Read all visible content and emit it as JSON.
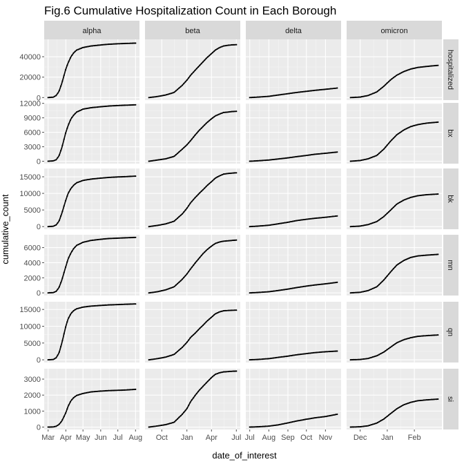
{
  "chart_data": {
    "type": "scatter",
    "title": "Fig.6 Cumulative Hospitalization Count in Each Borough",
    "xlabel": "date_of_interest",
    "ylabel": "cumulative_count",
    "grid": true,
    "facet_cols": [
      "alpha",
      "beta",
      "delta",
      "omicron"
    ],
    "facet_rows": [
      "hospitalized",
      "bx",
      "bk",
      "mn",
      "qn",
      "si"
    ],
    "x_ticks": {
      "alpha": [
        "Mar",
        "Apr",
        "May",
        "Jun",
        "Jul",
        "Aug"
      ],
      "beta": [
        "Oct",
        "Jan",
        "Apr",
        "Jul"
      ],
      "delta": [
        "Jul",
        "Aug",
        "Sep",
        "Oct",
        "Nov"
      ],
      "omicron": [
        "Dec",
        "Jan",
        "Feb"
      ]
    },
    "y_ticks": {
      "hospitalized": [
        0,
        20000,
        40000
      ],
      "bx": [
        0,
        3000,
        6000,
        9000,
        12000
      ],
      "bk": [
        0,
        5000,
        10000,
        15000
      ],
      "mn": [
        0,
        2000,
        4000,
        6000
      ],
      "qn": [
        0,
        5000,
        10000,
        15000
      ],
      "si": [
        0,
        1000,
        2000,
        3000
      ]
    },
    "y_ranges": {
      "hospitalized": [
        -2500,
        57000
      ],
      "bx": [
        -500,
        12100
      ],
      "bk": [
        -800,
        17500
      ],
      "mn": [
        -350,
        7700
      ],
      "qn": [
        -800,
        17300
      ],
      "si": [
        -150,
        3650
      ]
    },
    "series": {
      "alpha": {
        "x": [
          "2020-03-01",
          "2020-03-10",
          "2020-03-15",
          "2020-03-20",
          "2020-03-25",
          "2020-04-01",
          "2020-04-05",
          "2020-04-10",
          "2020-04-15",
          "2020-04-20",
          "2020-05-01",
          "2020-05-15",
          "2020-06-01",
          "2020-06-15",
          "2020-07-01",
          "2020-07-15",
          "2020-08-01"
        ],
        "hospitalized": [
          0,
          400,
          2000,
          6000,
          14000,
          28000,
          34000,
          40000,
          44000,
          46500,
          49000,
          50500,
          51500,
          52200,
          52700,
          53000,
          53300
        ],
        "bx": [
          0,
          80,
          300,
          1100,
          2800,
          6000,
          7400,
          8800,
          9600,
          10200,
          10800,
          11100,
          11300,
          11450,
          11550,
          11620,
          11700
        ],
        "bk": [
          0,
          100,
          500,
          1600,
          4000,
          8000,
          10000,
          11500,
          12500,
          13200,
          13900,
          14300,
          14600,
          14800,
          14950,
          15050,
          15200
        ],
        "mn": [
          0,
          40,
          200,
          700,
          1700,
          3500,
          4500,
          5300,
          5900,
          6300,
          6700,
          6950,
          7100,
          7200,
          7250,
          7300,
          7350
        ],
        "qn": [
          0,
          100,
          600,
          2000,
          5000,
          10000,
          12200,
          13800,
          14700,
          15200,
          15700,
          16000,
          16200,
          16350,
          16450,
          16550,
          16650
        ],
        "si": [
          0,
          10,
          50,
          160,
          380,
          900,
          1300,
          1650,
          1850,
          1980,
          2100,
          2200,
          2250,
          2280,
          2300,
          2320,
          2360
        ]
      },
      "beta": {
        "x": [
          "2020-08-15",
          "2020-09-15",
          "2020-10-15",
          "2020-11-15",
          "2020-12-15",
          "2021-01-01",
          "2021-01-15",
          "2021-02-01",
          "2021-02-15",
          "2021-03-01",
          "2021-03-15",
          "2021-04-01",
          "2021-04-15",
          "2021-05-01",
          "2021-05-15",
          "2021-06-01",
          "2021-06-15",
          "2021-07-01"
        ],
        "hospitalized": [
          0,
          1000,
          2500,
          5000,
          12000,
          17000,
          22000,
          27000,
          31000,
          35000,
          39000,
          43000,
          46500,
          49000,
          50500,
          51200,
          51600,
          51800
        ],
        "bx": [
          0,
          250,
          500,
          1000,
          2500,
          3400,
          4300,
          5500,
          6400,
          7200,
          8000,
          8800,
          9400,
          9800,
          10100,
          10200,
          10300,
          10350
        ],
        "bk": [
          0,
          350,
          800,
          1600,
          3800,
          5500,
          7200,
          8800,
          10000,
          11100,
          12300,
          13500,
          14600,
          15300,
          15800,
          16000,
          16100,
          16200
        ],
        "mn": [
          0,
          150,
          400,
          800,
          1800,
          2500,
          3200,
          4000,
          4600,
          5200,
          5700,
          6200,
          6550,
          6750,
          6850,
          6900,
          6950,
          7000
        ],
        "qn": [
          0,
          350,
          800,
          1600,
          3700,
          5200,
          6700,
          8000,
          9200,
          10300,
          11500,
          12700,
          13700,
          14300,
          14600,
          14700,
          14750,
          14800
        ],
        "si": [
          0,
          70,
          150,
          300,
          800,
          1150,
          1600,
          2000,
          2300,
          2550,
          2800,
          3100,
          3300,
          3400,
          3450,
          3470,
          3490,
          3500
        ]
      },
      "delta": {
        "x": [
          "2021-07-01",
          "2021-07-15",
          "2021-08-01",
          "2021-08-15",
          "2021-09-01",
          "2021-09-15",
          "2021-10-01",
          "2021-10-15",
          "2021-11-01",
          "2021-11-20"
        ],
        "hospitalized": [
          0,
          500,
          1200,
          2400,
          3800,
          5000,
          6100,
          7100,
          8100,
          9300
        ],
        "bx": [
          0,
          100,
          250,
          450,
          700,
          950,
          1200,
          1450,
          1650,
          1900
        ],
        "bk": [
          0,
          150,
          400,
          800,
          1300,
          1800,
          2200,
          2500,
          2800,
          3200
        ],
        "mn": [
          0,
          60,
          150,
          300,
          500,
          700,
          900,
          1050,
          1200,
          1400
        ],
        "qn": [
          0,
          120,
          350,
          700,
          1100,
          1500,
          1850,
          2150,
          2400,
          2600
        ],
        "si": [
          0,
          20,
          60,
          130,
          260,
          380,
          490,
          580,
          660,
          800
        ]
      },
      "omicron": {
        "x": [
          "2021-11-20",
          "2021-12-01",
          "2021-12-10",
          "2021-12-20",
          "2021-12-28",
          "2022-01-05",
          "2022-01-12",
          "2022-01-20",
          "2022-01-28",
          "2022-02-05",
          "2022-02-15",
          "2022-02-28"
        ],
        "hospitalized": [
          0,
          500,
          2000,
          5500,
          11000,
          17500,
          22000,
          25500,
          28000,
          29500,
          30500,
          31500
        ],
        "bx": [
          0,
          150,
          500,
          1200,
          2500,
          4200,
          5500,
          6500,
          7200,
          7600,
          7900,
          8100
        ],
        "bk": [
          0,
          150,
          600,
          1500,
          3000,
          5000,
          6800,
          8000,
          8800,
          9300,
          9600,
          9800
        ],
        "mn": [
          0,
          80,
          300,
          800,
          1700,
          2800,
          3700,
          4300,
          4700,
          4900,
          5000,
          5100
        ],
        "qn": [
          0,
          100,
          400,
          1200,
          2300,
          3800,
          5100,
          6000,
          6600,
          7000,
          7200,
          7400
        ],
        "si": [
          0,
          20,
          80,
          250,
          500,
          850,
          1150,
          1400,
          1550,
          1650,
          1700,
          1750
        ]
      }
    }
  }
}
